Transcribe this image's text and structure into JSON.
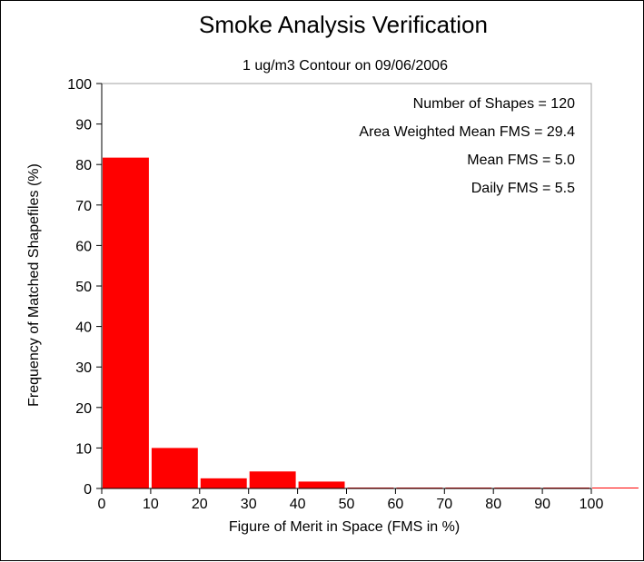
{
  "chart_data": {
    "type": "bar",
    "title": "Smoke Analysis Verification",
    "subtitle": "1 ug/m3 Contour on 09/06/2006",
    "xlabel": "Figure of Merit in Space (FMS in %)",
    "ylabel": "Frequency of Matched Shapefiles (%)",
    "xlim": [
      0,
      100
    ],
    "ylim": [
      0,
      100
    ],
    "xticks": [
      0,
      10,
      20,
      30,
      40,
      50,
      60,
      70,
      80,
      90,
      100
    ],
    "yticks": [
      0,
      10,
      20,
      30,
      40,
      50,
      60,
      70,
      80,
      90,
      100
    ],
    "bin_starts": [
      0,
      10,
      20,
      30,
      40,
      50,
      60,
      70,
      80,
      90,
      100
    ],
    "values": [
      81.7,
      10.0,
      2.5,
      4.2,
      1.7,
      0,
      0,
      0,
      0,
      0,
      0
    ],
    "bar_color": "#ff0000",
    "grid": false,
    "annotations": [
      "Number of Shapes = 120",
      "Area Weighted Mean FMS = 29.4",
      "Mean FMS = 5.0",
      "Daily FMS = 5.5"
    ],
    "annotation_placement": "top-right"
  }
}
